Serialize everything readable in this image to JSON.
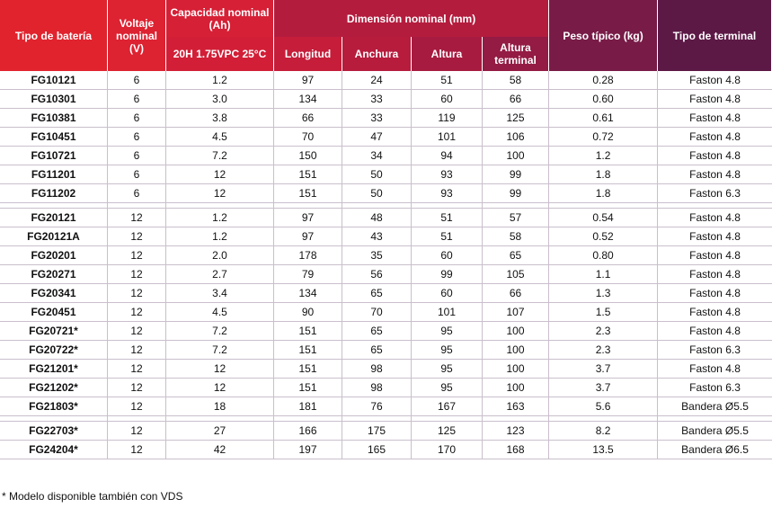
{
  "headers": {
    "tipo_bateria": "Tipo de batería",
    "voltaje": "Voltaje nominal (V)",
    "capacidad": "Capacidad nominal (Ah)",
    "capacidad_sub": "20H 1.75VPC 25°C",
    "dimension": "Dimensión nominal (mm)",
    "longitud": "Longitud",
    "anchura": "Anchura",
    "altura": "Altura",
    "altura_terminal": "Altura terminal",
    "peso": "Peso típico (kg)",
    "tipo_terminal": "Tipo de terminal"
  },
  "groups": [
    [
      [
        "FG10121",
        "6",
        "1.2",
        "97",
        "24",
        "51",
        "58",
        "0.28",
        "Faston 4.8"
      ],
      [
        "FG10301",
        "6",
        "3.0",
        "134",
        "33",
        "60",
        "66",
        "0.60",
        "Faston 4.8"
      ],
      [
        "FG10381",
        "6",
        "3.8",
        "66",
        "33",
        "119",
        "125",
        "0.61",
        "Faston 4.8"
      ],
      [
        "FG10451",
        "6",
        "4.5",
        "70",
        "47",
        "101",
        "106",
        "0.72",
        "Faston 4.8"
      ],
      [
        "FG10721",
        "6",
        "7.2",
        "150",
        "34",
        "94",
        "100",
        "1.2",
        "Faston 4.8"
      ],
      [
        "FG11201",
        "6",
        "12",
        "151",
        "50",
        "93",
        "99",
        "1.8",
        "Faston 4.8"
      ],
      [
        "FG11202",
        "6",
        "12",
        "151",
        "50",
        "93",
        "99",
        "1.8",
        "Faston 6.3"
      ]
    ],
    [
      [
        "FG20121",
        "12",
        "1.2",
        "97",
        "48",
        "51",
        "57",
        "0.54",
        "Faston 4.8"
      ],
      [
        "FG20121A",
        "12",
        "1.2",
        "97",
        "43",
        "51",
        "58",
        "0.52",
        "Faston 4.8"
      ],
      [
        "FG20201",
        "12",
        "2.0",
        "178",
        "35",
        "60",
        "65",
        "0.80",
        "Faston 4.8"
      ],
      [
        "FG20271",
        "12",
        "2.7",
        "79",
        "56",
        "99",
        "105",
        "1.1",
        "Faston 4.8"
      ],
      [
        "FG20341",
        "12",
        "3.4",
        "134",
        "65",
        "60",
        "66",
        "1.3",
        "Faston 4.8"
      ],
      [
        "FG20451",
        "12",
        "4.5",
        "90",
        "70",
        "101",
        "107",
        "1.5",
        "Faston 4.8"
      ],
      [
        "FG20721*",
        "12",
        "7.2",
        "151",
        "65",
        "95",
        "100",
        "2.3",
        "Faston 4.8"
      ],
      [
        "FG20722*",
        "12",
        "7.2",
        "151",
        "65",
        "95",
        "100",
        "2.3",
        "Faston 6.3"
      ],
      [
        "FG21201*",
        "12",
        "12",
        "151",
        "98",
        "95",
        "100",
        "3.7",
        "Faston 4.8"
      ],
      [
        "FG21202*",
        "12",
        "12",
        "151",
        "98",
        "95",
        "100",
        "3.7",
        "Faston 6.3"
      ],
      [
        "FG21803*",
        "12",
        "18",
        "181",
        "76",
        "167",
        "163",
        "5.6",
        "Bandera Ø5.5"
      ]
    ],
    [
      [
        "FG22703*",
        "12",
        "27",
        "166",
        "175",
        "125",
        "123",
        "8.2",
        "Bandera Ø5.5"
      ],
      [
        "FG24204*",
        "12",
        "42",
        "197",
        "165",
        "170",
        "168",
        "13.5",
        "Bandera Ø6.5"
      ]
    ]
  ],
  "footnote": "* Modelo disponible también con VDS"
}
